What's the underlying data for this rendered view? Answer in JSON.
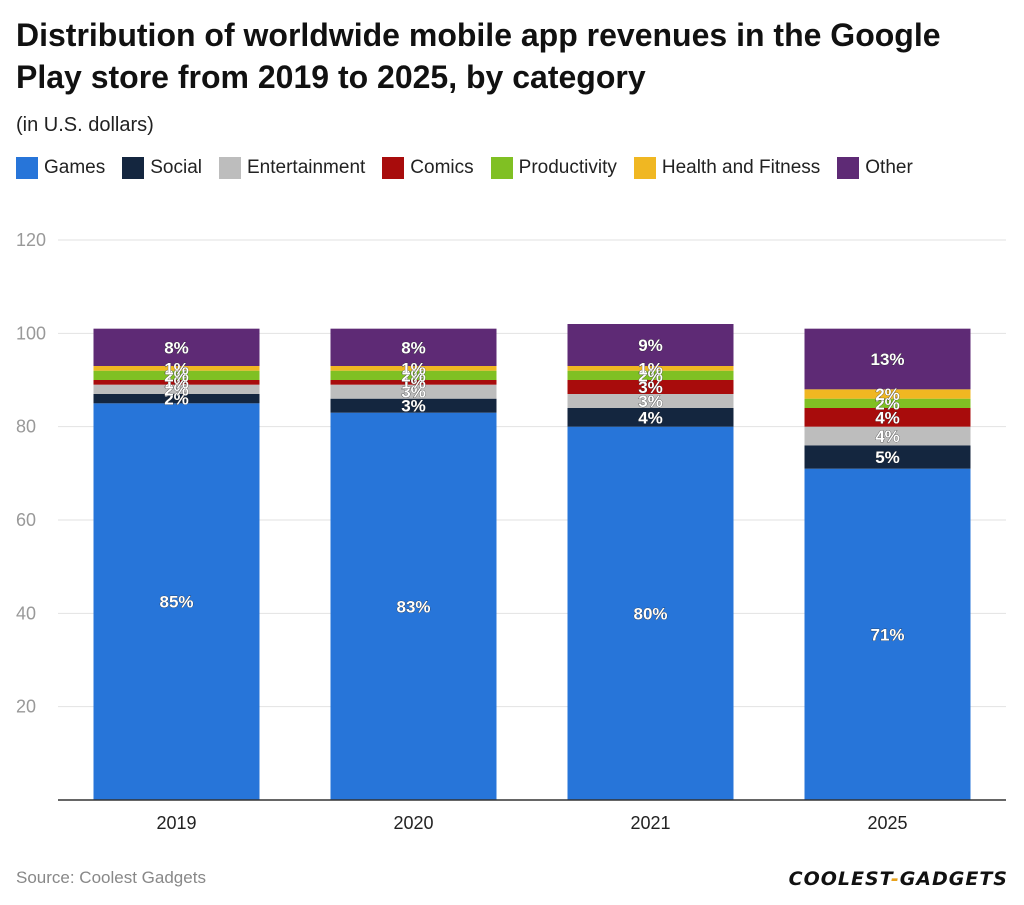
{
  "header": {
    "title": "Distribution of worldwide mobile app revenues in the Google Play store from 2019 to 2025, by category",
    "subtitle": "(in U.S. dollars)"
  },
  "legend": [
    {
      "label": "Games",
      "color": "#2775d9"
    },
    {
      "label": "Social",
      "color": "#14263f"
    },
    {
      "label": "Entertainment",
      "color": "#bdbdbd"
    },
    {
      "label": "Comics",
      "color": "#a80c0c"
    },
    {
      "label": "Productivity",
      "color": "#80c023"
    },
    {
      "label": "Health and Fitness",
      "color": "#f0b722"
    },
    {
      "label": "Other",
      "color": "#5e2a75"
    }
  ],
  "chart_data": {
    "type": "bar",
    "stacked": true,
    "title": "Distribution of worldwide mobile app revenues in the Google Play store from 2019 to 2025, by category",
    "subtitle": "(in U.S. dollars)",
    "categories": [
      "2019",
      "2020",
      "2021",
      "2025"
    ],
    "series": [
      {
        "name": "Games",
        "color": "#2775d9",
        "values": [
          85,
          83,
          80,
          71
        ],
        "labels": [
          "85%",
          "83%",
          "80%",
          "71%"
        ]
      },
      {
        "name": "Social",
        "color": "#14263f",
        "values": [
          2,
          3,
          4,
          5
        ],
        "labels": [
          "2%",
          "3%",
          "4%",
          "5%"
        ]
      },
      {
        "name": "Entertainment",
        "color": "#bdbdbd",
        "values": [
          2,
          3,
          3,
          4
        ],
        "labels": [
          "2%",
          "3%",
          "3%",
          "4%"
        ]
      },
      {
        "name": "Comics",
        "color": "#a80c0c",
        "values": [
          1,
          1,
          3,
          4
        ],
        "labels": [
          "1%",
          "1%",
          "3%",
          "4%"
        ]
      },
      {
        "name": "Productivity",
        "color": "#80c023",
        "values": [
          2,
          2,
          2,
          2
        ],
        "labels": [
          "2%",
          "2%",
          "2%",
          "2%"
        ]
      },
      {
        "name": "Health and Fitness",
        "color": "#f0b722",
        "values": [
          1,
          1,
          1,
          2
        ],
        "labels": [
          "1%",
          "1%",
          "1%",
          "2%"
        ]
      },
      {
        "name": "Other",
        "color": "#5e2a75",
        "values": [
          8,
          8,
          9,
          13
        ],
        "labels": [
          "8%",
          "8%",
          "9%",
          "13%"
        ]
      }
    ],
    "yticks": [
      20,
      40,
      60,
      80,
      100,
      120
    ],
    "ylim": [
      0,
      120
    ],
    "xlabel": "",
    "ylabel": "",
    "grid": true,
    "legend_position": "top"
  },
  "footer": {
    "source": "Source: Coolest Gadgets",
    "logo_left": "COOLEST",
    "logo_dash": "-",
    "logo_right": "GADGETS"
  }
}
